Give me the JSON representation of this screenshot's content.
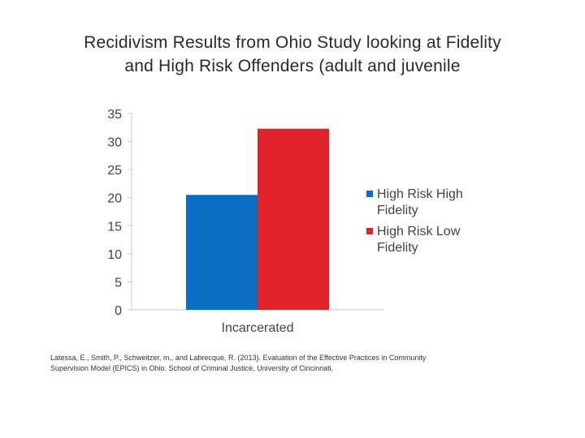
{
  "title": {
    "line1": "Recidivism Results from Ohio Study looking at Fidelity",
    "line2": "and High Risk Offenders (adult and juvenile"
  },
  "chart_data": {
    "type": "bar",
    "categories": [
      "Incarcerated"
    ],
    "series": [
      {
        "name": "High Risk High Fidelity",
        "values": [
          20.5
        ],
        "color": "#0a6fc2"
      },
      {
        "name": "High Risk Low Fidelity",
        "values": [
          32.3
        ],
        "color": "#e0242b"
      }
    ],
    "ylim": [
      0,
      35
    ],
    "yticks": [
      0,
      5,
      10,
      15,
      20,
      25,
      30,
      35
    ],
    "xlabel": "",
    "ylabel": "",
    "legend": {
      "placement": "right",
      "entries": [
        {
          "line1": "High Risk High",
          "line2": "Fidelity"
        },
        {
          "line1": "High Risk Low",
          "line2": "Fidelity"
        }
      ]
    }
  },
  "citation": {
    "line1": "Latessa, E., Smith, P., Schweitzer, m., and Labrecque, R. (2013).  Evaluation of the Effective Practices in Community",
    "line2": "Supervision Model (EPICS) in Ohio.  School of Criminal Justice, University of Cincinnati."
  }
}
